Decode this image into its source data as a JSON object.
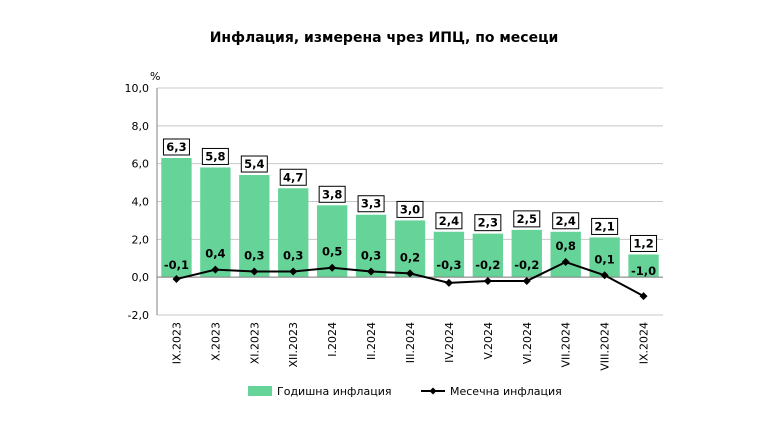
{
  "chart_data": {
    "type": "bar",
    "title": "Инфлация, измерена чрез ИПЦ, по месеци",
    "y_unit": "%",
    "ylim": [
      -2.0,
      10.0
    ],
    "yticks": [
      "10,0",
      "8,0",
      "6,0",
      "4,0",
      "2,0",
      "0,0",
      "-2,0"
    ],
    "ytick_values": [
      10,
      8,
      6,
      4,
      2,
      0,
      -2
    ],
    "grid": true,
    "legend_position": "bottom",
    "categories": [
      "IX.2023",
      "X.2023",
      "XI.2023",
      "XII.2023",
      "I.2024",
      "II.2024",
      "III.2024",
      "IV.2024",
      "V.2024",
      "VI.2024",
      "VII.2024",
      "VIII.2024",
      "IX.2024"
    ],
    "series": [
      {
        "name": "Годишна инфлация",
        "type": "bar",
        "color": "#66d399",
        "values": [
          6.3,
          5.8,
          5.4,
          4.7,
          3.8,
          3.3,
          3.0,
          2.4,
          2.3,
          2.5,
          2.4,
          2.1,
          1.2
        ],
        "labels": [
          "6,3",
          "5,8",
          "5,4",
          "4,7",
          "3,8",
          "3,3",
          "3,0",
          "2,4",
          "2,3",
          "2,5",
          "2,4",
          "2,1",
          "1,2"
        ]
      },
      {
        "name": "Месечна инфлация",
        "type": "line",
        "color": "#000000",
        "values": [
          -0.1,
          0.4,
          0.3,
          0.3,
          0.5,
          0.3,
          0.2,
          -0.3,
          -0.2,
          -0.2,
          0.8,
          0.1,
          -1.0
        ],
        "labels": [
          "-0,1",
          "0,4",
          "0,3",
          "0,3",
          "0,5",
          "0,3",
          "0,2",
          "-0,3",
          "-0,2",
          "-0,2",
          "0,8",
          "0,1",
          "-1,0"
        ]
      }
    ]
  }
}
